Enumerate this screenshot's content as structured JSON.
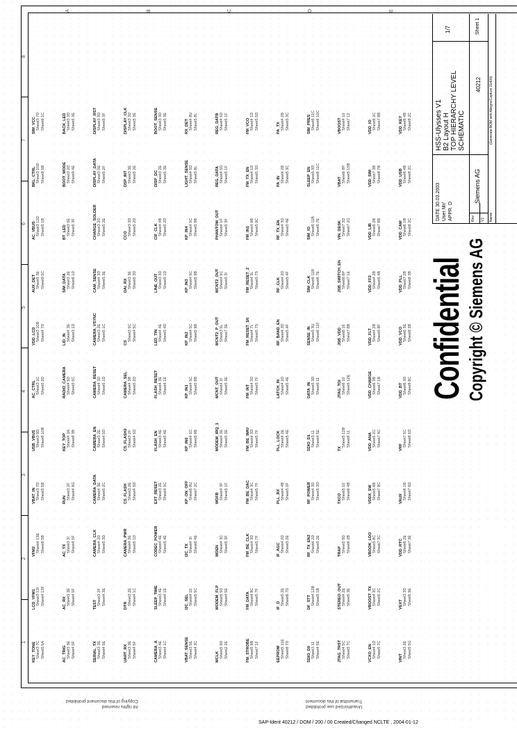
{
  "sheet": {
    "confidential": "Confidential",
    "copyright": "Copyright © Siemens AG",
    "zones_numbers": [
      "1",
      "2",
      "3",
      "4",
      "5",
      "6",
      "7",
      "8"
    ],
    "zones_letters": [
      "A",
      "B",
      "C",
      "D",
      "E"
    ]
  },
  "title_block": {
    "date_label": "DATE",
    "date": "30.03.2003",
    "user_label": "User",
    "user": "Mr/",
    "appr_label": "APPR.",
    "appr": "D",
    "company": "Siemens AG",
    "title_lines": [
      "HSS-Ulysses V1",
      "B2 Layout H",
      "TOP HIERARCHY LEVEL",
      "SCHEMATIC"
    ],
    "doc_number": "40212",
    "page": "1/7",
    "sheet": "Sheet 1",
    "rev_label": "Rev",
    "rev": "V1",
    "name_label": "Name",
    "note": "(Generate BOM with Allegro/Capture 31400)"
  },
  "footer": {
    "ident": "SAP-Ident 40212 / DOM / 200 / 00    Created/Changed NCLTE , 2004-01-12",
    "notice_left": [
      "All rights reserved",
      "Copying of this document prohibited"
    ],
    "notice_right": [
      "Unauthorized use prohibited",
      "Transmittal of this document"
    ]
  },
  "nets": [
    [
      [
        "KEY_TONE",
        "Sheet3 7C",
        "Sheet5 5A"
      ],
      [
        "LCD_VFM1",
        "Sheet3 13I",
        "Sheet4 13F"
      ],
      [
        "VFM2",
        "Sheet4 13E",
        "Sheet8 5B"
      ],
      [
        "VBAT_IN",
        "Sheet3 7D",
        "Sheet5 5B"
      ],
      [
        "USB_VBUS",
        "Sheet3 9D",
        "Sheet8 10B"
      ],
      [
        "AC_CTRL",
        "Sheet3 2C",
        "Sheet5 2D"
      ],
      [
        "VDD_LCD",
        "Sheet3 10B",
        "Sheet4 7D"
      ],
      [
        "AUX_DET",
        "Sheet5 3E",
        "Sheet9 5C"
      ],
      [
        "AC_VBUS",
        "Sheet3 12D",
        "Sheet5 1B"
      ],
      [
        "BKL_CTRL",
        "Sheet3 10D",
        "Sheet8 5B"
      ],
      [
        "SIM_VCC",
        "Sheet3 7D",
        "Sheet6 1C"
      ]
    ],
    [
      [
        "AC_TRIG",
        "Sheet3 3E",
        "Sheet4 5F"
      ],
      [
        "AC_RX",
        "Sheet3 3E",
        "Sheet4 5F"
      ],
      [
        "AC_TX",
        "Sheet3 3I",
        "Sheet4 5F"
      ],
      [
        "RUN",
        "Sheet3 2F",
        "Sheet4 8G"
      ],
      [
        "KEY_TOP",
        "Sheet4 3A",
        "Sheet8 3B"
      ],
      [
        "RADIO_CAMERA",
        "Sheet4 5D",
        "Sheet5 5C"
      ],
      [
        "LID_IN",
        "Sheet4 3E",
        "Sheet3 1D"
      ],
      [
        "SIM_DATA",
        "Sheet3 2E",
        "Sheet6 1D"
      ],
      [
        "BT_LED",
        "Sheet3 5E",
        "Sheet5 3F"
      ],
      [
        "BOOT_MODE",
        "Sheet3 2D",
        "Sheet9 4E"
      ],
      [
        "BACK_LED",
        "Sheet3 3D",
        "Sheet5 3E"
      ]
    ],
    [
      [
        "SERIAL_TX",
        "Sheet3 3E",
        "Sheet4 5E"
      ],
      [
        "TEST",
        "Sheet3 2F",
        "Sheet4 3E"
      ],
      [
        "CAMERA_CLK",
        "Sheet4 2D",
        "Sheet5 3D"
      ],
      [
        "CAMERA_DATA",
        "Sheet4 3E",
        "Sheet5 2C"
      ],
      [
        "CAMERA_EN",
        "Sheet3 2E",
        "Sheet4 5D"
      ],
      [
        "CAMERA_RESET",
        "Sheet4 3D",
        "Sheet5 1D"
      ],
      [
        "CAMERA_VSYNC",
        "Sheet3 2E",
        "Sheet5 1C"
      ],
      [
        "CAM_SENSE",
        "Sheet4 3D",
        "Sheet5 3E"
      ],
      [
        "CHARGE_SOLDER",
        "Sheet3 2D",
        "Sheet5 2E"
      ],
      [
        "DISPLAY_DATA",
        "Sheet3 5E",
        "Sheet5 2F"
      ],
      [
        "DISPLAY_RST",
        "Sheet3 3D",
        "Sheet5 3F"
      ]
    ],
    [
      [
        "UART_RX",
        "Sheet3 3E",
        "Sheet4 5F"
      ],
      [
        "DTR",
        "Sheet3 2E",
        "Sheet4 1C"
      ],
      [
        "CAMERA_PWR",
        "Sheet4 3E",
        "Sheet5 1D"
      ],
      [
        "CS_FLASH",
        "Sheet3 2E",
        "Sheet4 5D"
      ],
      [
        "CS_FLASH2",
        "Sheet3 2F",
        "Sheet4 5D"
      ],
      [
        "CAMERA_SEL",
        "Sheet4 3B",
        "Sheet5 2D"
      ],
      [
        "CS",
        "Sheet3 5C",
        "Sheet4 5C"
      ],
      [
        "DAI_RX",
        "Sheet3 3E",
        "Sheet5 3D"
      ],
      [
        "CCO",
        "Sheet3 3D",
        "Sheet5 2D"
      ],
      [
        "DSP_INT",
        "Sheet3 3E",
        "Sheet5 2E"
      ],
      [
        "DISPLAY_CLK",
        "Sheet3 3D",
        "Sheet5 3E"
      ]
    ],
    [
      [
        "CAMERA_A",
        "Sheet3 4E",
        "Sheet4 1C"
      ],
      [
        "SLEEP_TIME",
        "Sheet3 4E",
        "Sheet4 1E"
      ],
      [
        "CODEC_POWER",
        "Sheet4 4E",
        "Sheet5 4E"
      ],
      [
        "EXT_RESET",
        "Sheet3 2E",
        "Sheet4 5C"
      ],
      [
        "FLASH_EN",
        "Sheet3 4E",
        "Sheet5 4E"
      ],
      [
        "FLASH_RESET",
        "Sheet4 3E",
        "Sheet4 1E"
      ],
      [
        "LED_TIN",
        "Sheet4 4E",
        "Sheet5 4D"
      ],
      [
        "LINE_OUT",
        "Sheet3 3D",
        "Sheet5 1D"
      ],
      [
        "CIF_CLK",
        "Sheet4 4B",
        "Sheet5 2D"
      ],
      [
        "DISP_DC",
        "Sheet3 2E",
        "Sheet5 3E"
      ],
      [
        "BOOT_SENSE",
        "Sheet3 3D",
        "Sheet5 3E"
      ]
    ],
    [
      [
        "VBAT_SENSE",
        "Sheet3 5E",
        "Sheet4 3C"
      ],
      [
        "I2C_SEL",
        "Sheet4 10",
        "Sheet5 5C"
      ],
      [
        "I2C_TX",
        "Sheet4 3I",
        "Sheet6 4E"
      ],
      [
        "KP_ON_OFF",
        "Sheet6 8U",
        "Sheet7 2C"
      ],
      [
        "KP_IN0",
        "Sheet4 5C",
        "Sheet5 9B"
      ],
      [
        "KP_IN1",
        "Sheet4 5C",
        "Sheet5 9B"
      ],
      [
        "KP_IN2",
        "Sheet4 5C",
        "Sheet5 9B"
      ],
      [
        "KP_IN3",
        "Sheet4 5C",
        "Sheet5 9B"
      ],
      [
        "KP_IN4",
        "Sheet4 5C",
        "Sheet5 9B"
      ],
      [
        "LIGHT_SENSE",
        "Sheet4 5D",
        "Sheet5 8L"
      ],
      [
        "RX_DET",
        "Sheet4 8U",
        "Sheet5 8L"
      ]
    ],
    [
      [
        "MCLK",
        "Sheet5 5D",
        "Sheet2 2E"
      ],
      [
        "MODEM_FLP",
        "Sheet5 5D",
        "Sheet4 5E"
      ],
      [
        "WDEN",
        "Sheet4 3C",
        "Sheet5 3F"
      ],
      [
        "WDFB",
        "Sheet4 3F",
        "Sheet5 1F"
      ],
      [
        "MODEM_IRQ_1",
        "Sheet4 3E",
        "Sheet5 3E"
      ],
      [
        "MCNT_OUT",
        "Sheet4 3I",
        "Sheet5 3E"
      ],
      [
        "MCNT2_P_OUT",
        "Sheet3 5L",
        "Sheet7 3E"
      ],
      [
        "MCNT2_OUT",
        "Sheet4 5C",
        "Sheet5 3I"
      ],
      [
        "PHANTOM_OUT",
        "Sheet4 1F",
        "Sheet5 3F"
      ],
      [
        "REG_DATA",
        "Sheet4 5D",
        "Sheet5 1F"
      ],
      [
        "REG_DATB",
        "Sheet4 5D",
        "Sheet5 1F"
      ]
    ],
    [
      [
        "FM_STROBE",
        "Sheet5 9B",
        "Sheet7 1F"
      ],
      [
        "FM_DATA",
        "Sheet4 9C",
        "Sheet5 7F"
      ],
      [
        "FM_BE_CLK",
        "Sheet4 3D",
        "Sheet5 7F"
      ],
      [
        "FM_BE_DAC",
        "Sheet4 3C",
        "Sheet5 7F"
      ],
      [
        "FM_BE_WAV",
        "Sheet4 3D",
        "Sheet5 7F"
      ],
      [
        "FM_INT",
        "Sheet4 3D",
        "Sheet5 7F"
      ],
      [
        "FM_RESET_1N",
        "Sheet4 7L",
        "Sheet5 7S"
      ],
      [
        "FM_RESET_2",
        "Sheet4 3L",
        "Sheet5 7S"
      ],
      [
        "FM_IN1",
        "Sheet4 9B",
        "Sheet5 9C"
      ],
      [
        "FM_TX_EN",
        "Sheet4 1D",
        "Sheet5 3D"
      ],
      [
        "FM_VCO",
        "Sheet4 1D",
        "Sheet5 5D"
      ]
    ],
    [
      [
        "EEPROM",
        "Sheet5 11E",
        "Sheet8 7D"
      ],
      [
        "IF_D",
        "Sheet5 2E",
        "Sheet6 7D"
      ],
      [
        "IF_AGC",
        "Sheet4 2D",
        "Sheet5 2E"
      ],
      [
        "PLL_RX",
        "Sheet4 4B",
        "Sheet5 2F"
      ],
      [
        "PLL_LOCK",
        "Sheet4 2E",
        "Sheet5 4E"
      ],
      [
        "LATCH_IN",
        "Sheet4 2D",
        "Sheet5 4E"
      ],
      [
        "RF_BAND_EN",
        "Sheet4 3D",
        "Sheet5 4F"
      ],
      [
        "RF_CLK",
        "Sheet4 2D",
        "Sheet5 4F"
      ],
      [
        "RF_TX_EN",
        "Sheet4 3D",
        "Sheet5 4E"
      ],
      [
        "PA_IN",
        "Sheet4 2B",
        "Sheet5 3C"
      ],
      [
        "PA_TX",
        "Sheet4 2B",
        "Sheet5 3C"
      ]
    ],
    [
      [
        "SDIO_D0",
        "Sheet3 11",
        "Sheet4 5E"
      ],
      [
        "DF_STT",
        "Sheet4 12B",
        "Sheet5 1B"
      ],
      [
        "RF_TX_EN2",
        "Sheet4 2D",
        "Sheet5 2E"
      ],
      [
        "RF_POWER",
        "Sheet4 3D",
        "Sheet5 3D"
      ],
      [
        "SDIO_D1",
        "Sheet3 11",
        "Sheet4 5E"
      ],
      [
        "DATA_IN",
        "Sheet5 3D",
        "Sheet6 11"
      ],
      [
        "SENSE_IN",
        "Sheet5 3U",
        "Sheet6 11F"
      ],
      [
        "SIM_CLK",
        "Sheet6 11B",
        "Sheet6 7E"
      ],
      [
        "SIM_IO",
        "Sheet6 11B",
        "Sheet6 7E"
      ],
      [
        "SLEEP_EN",
        "Sheet5 3D",
        "Sheet6 11C"
      ],
      [
        "SIM_PRES",
        "Sheet6 11C",
        "Sheet6 10C"
      ]
    ],
    [
      [
        "JTAG_TRST",
        "Sheet4 5C",
        "Sheet5 7C"
      ],
      [
        "STEREO_OUT",
        "Sheet4 2E",
        "Sheet5 3E"
      ],
      [
        "TRAP",
        "Sheet5 9D",
        "Sheet6 2B"
      ],
      [
        "TXCO",
        "Sheet5 10",
        "Sheet6 4B"
      ],
      [
        "TX",
        "Sheet5 12B",
        "Sheet6 11"
      ],
      [
        "JTAG_TDI",
        "Sheet6 10",
        "Sheet5 12E"
      ],
      [
        "JSB_VDD",
        "Sheet6 16",
        "Sheet7 8B"
      ],
      [
        "JSB_SWITCH_EN",
        "Sheet6 8P",
        "Sheet7 1E"
      ],
      [
        "VIN_DESK",
        "Sheet7 3D",
        "Sheet7 2G"
      ],
      [
        "VBAT",
        "Sheet6 8P",
        "Sheet5 15B"
      ],
      [
        "VBOOST",
        "Sheet4 10",
        "Sheet7 12"
      ]
    ],
    [
      [
        "VCXO_EN",
        "Sheet4 1D",
        "Sheet5 7C"
      ],
      [
        "VBOOST_TX",
        "Sheet4 3C",
        "Sheet5 2C"
      ],
      [
        "VBOOK_LDO",
        "Sheet5 8C",
        "Sheet7 3C"
      ],
      [
        "VDDX_SW",
        "Sheet5 8B",
        "Sheet7 8C"
      ],
      [
        "VDD_ANA",
        "Sheet5 2C",
        "Sheet7 4C"
      ],
      [
        "VDD_CHARGE",
        "Sheet6 3B",
        "Sheet7 1B"
      ],
      [
        "VDD_FLT",
        "Sheet4 2B",
        "Sheet5 8F"
      ],
      [
        "VDD_FF2",
        "Sheet4 2B",
        "Sheet5 4B"
      ],
      [
        "VDD_LIB",
        "Sheet6 2B",
        "Sheet7 8B"
      ],
      [
        "VDD_SIM",
        "Sheet7 3B",
        "Sheet8 7B"
      ],
      [
        "VDD_IO",
        "Sheet6 2C",
        "Sheet7 8B"
      ]
    ],
    [
      [
        "VINT",
        "Sheet3 2E",
        "Sheet5 5G"
      ],
      [
        "VEXT",
        "Sheet3 3D",
        "Sheet5 9E"
      ],
      [
        "VDD_RTC",
        "Sheet6 2E",
        "Sheet7 3E"
      ],
      [
        "VAUX",
        "Sheet6 1B",
        "Sheet7 6D"
      ],
      [
        "VRF",
        "Sheet7 5C",
        "Sheet8 5D"
      ],
      [
        "VDD_BT",
        "Sheet6 3D",
        "Sheet8 8C"
      ],
      [
        "VDD_VCO",
        "Sheet6 3E",
        "Sheet8 3B"
      ],
      [
        "VDD_PLL",
        "Sheet7 2B",
        "Sheet8 3B"
      ],
      [
        "VDD_CAM",
        "Sheet6 1B",
        "Sheet8 2C"
      ],
      [
        "VDD_USB",
        "Sheet6 4B",
        "Sheet8 2C"
      ],
      [
        "VDD_KEY",
        "Sheet6 4B",
        "Sheet8 2C"
      ]
    ]
  ]
}
